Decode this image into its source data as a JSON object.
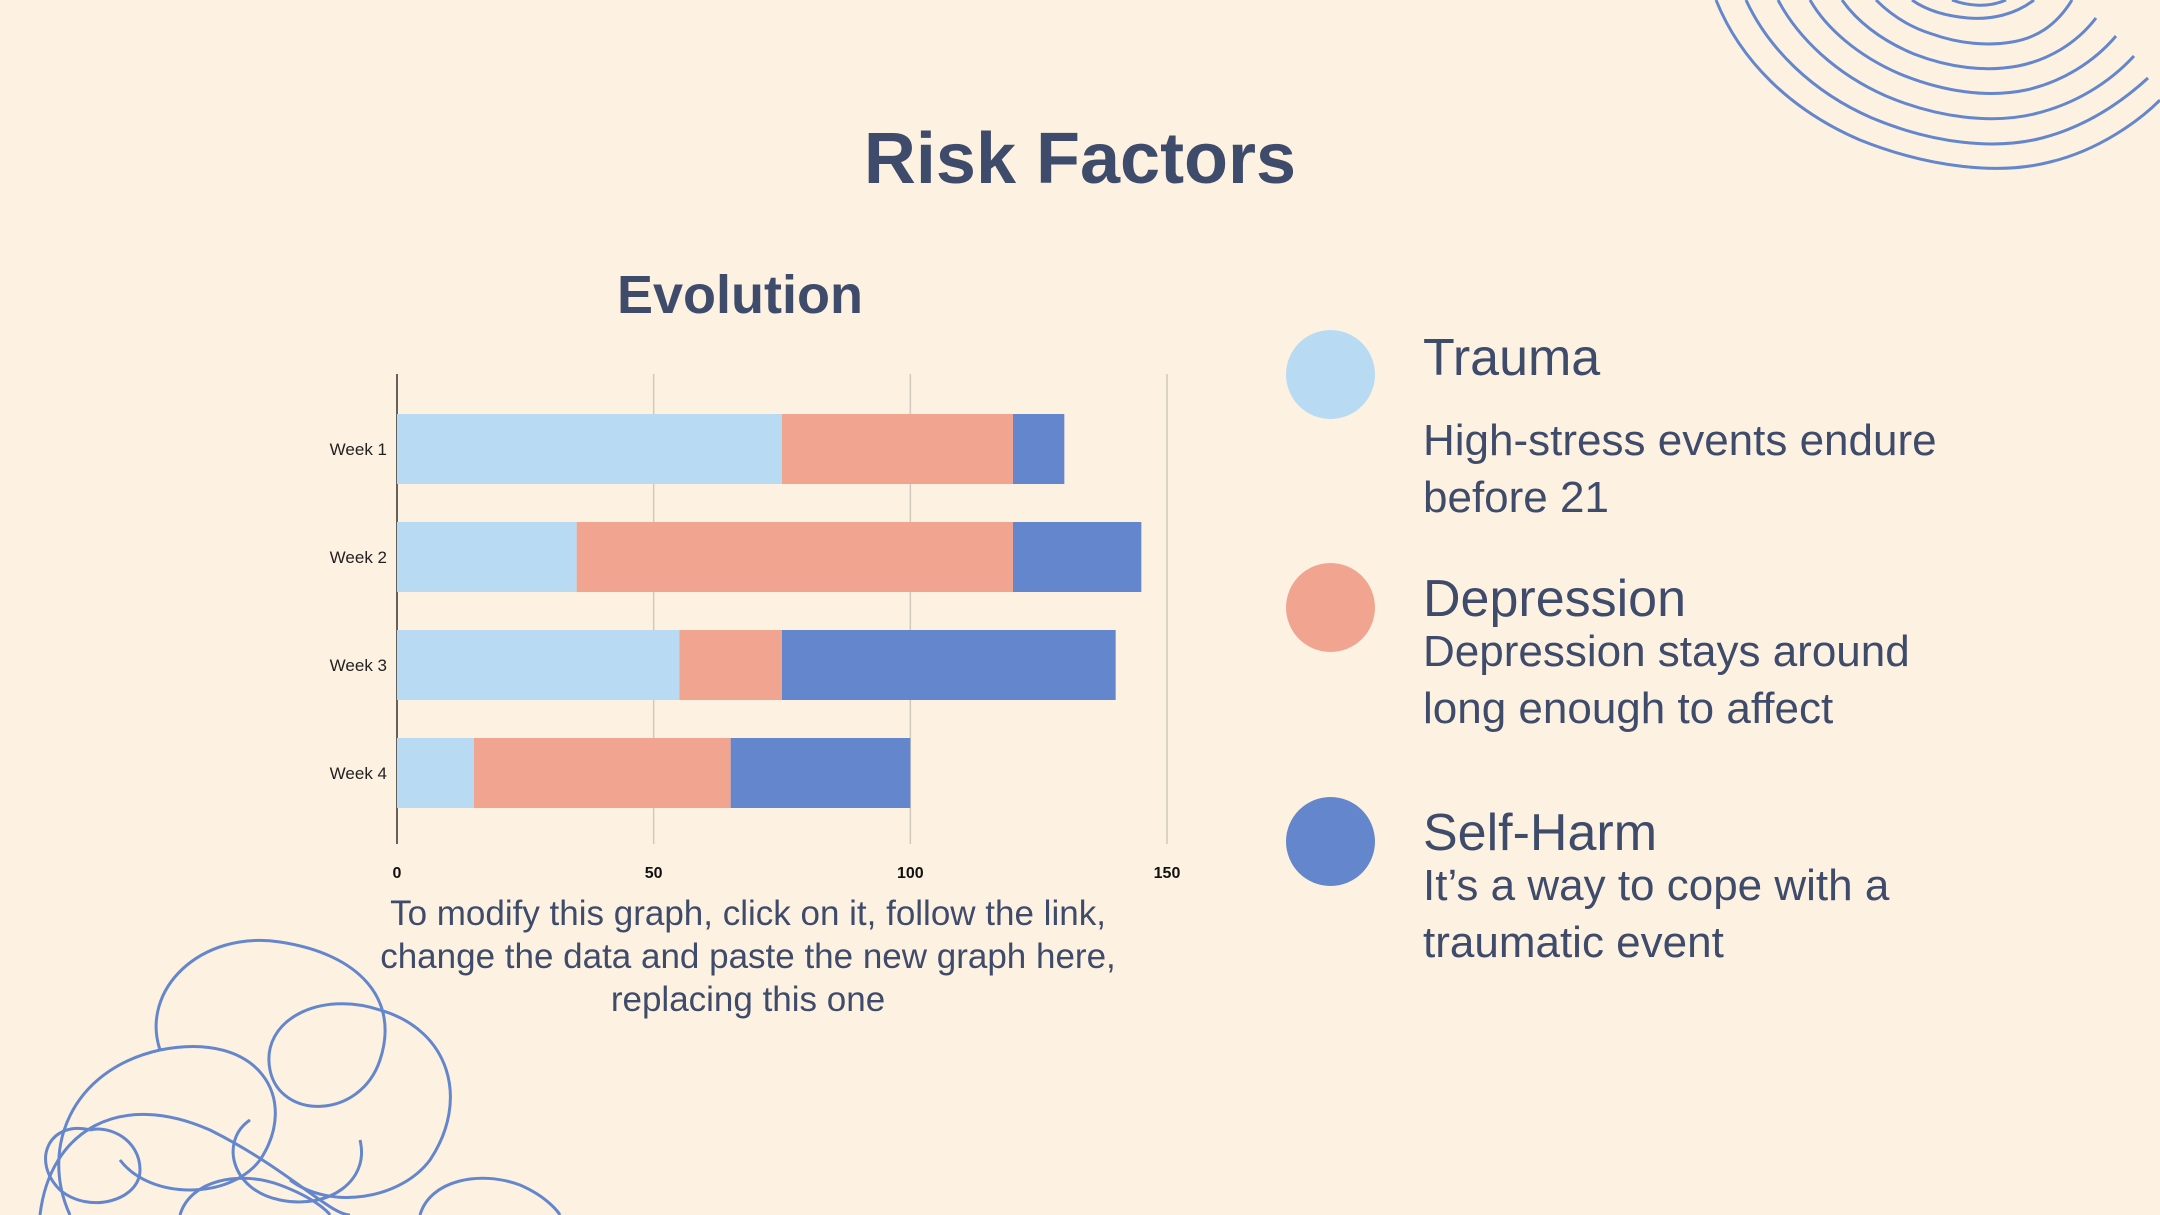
{
  "slide": {
    "title": "Risk Factors",
    "caption": "To modify this graph, click on it, follow the link, change the data and paste the new graph here, replacing this one"
  },
  "colors": {
    "background": "#fdf2e1",
    "text": "#3f4b6b",
    "trauma": "#b8dbf3",
    "depression": "#f1a591",
    "self_harm": "#6486cc",
    "decoration": "#6486cc"
  },
  "legend": [
    {
      "name": "Trauma",
      "description": "High-stress events endure before 21",
      "color": "#b8dbf3"
    },
    {
      "name": "Depression",
      "description": "Depression stays around long enough to affect",
      "color": "#f1a591"
    },
    {
      "name": "Self-Harm",
      "description": "It’s a way to cope with a traumatic event",
      "color": "#6486cc"
    }
  ],
  "chart_data": {
    "type": "bar",
    "orientation": "horizontal",
    "stacked": true,
    "title": "Evolution",
    "categories": [
      "Week 1",
      "Week 2",
      "Week 3",
      "Week 4"
    ],
    "series": [
      {
        "values": [
          75,
          35,
          55,
          15
        ],
        "color": "#b8dbf3"
      },
      {
        "values": [
          45,
          85,
          20,
          50
        ],
        "color": "#f1a591"
      },
      {
        "values": [
          10,
          25,
          65,
          35
        ],
        "color": "#6486cc"
      }
    ],
    "xlim": [
      0,
      150
    ],
    "x_ticks": [
      0,
      50,
      100,
      150
    ],
    "xlabel": "",
    "ylabel": "",
    "grid": true,
    "legend": "none"
  }
}
